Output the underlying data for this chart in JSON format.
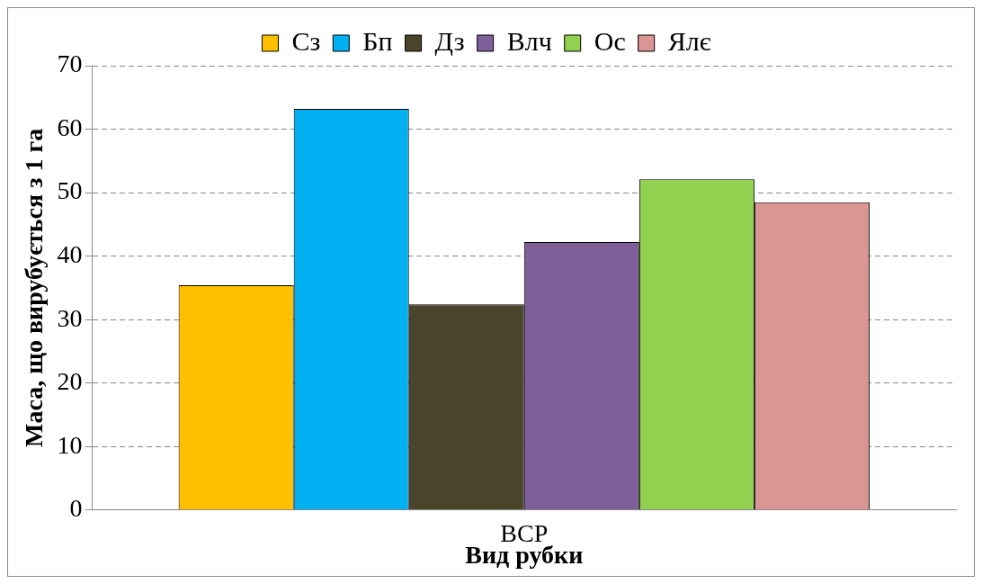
{
  "chart_data": {
    "type": "bar",
    "xlabel": "Вид рубки",
    "ylabel": "Маса, що вирубується з 1 га",
    "categories": [
      "ВСР"
    ],
    "series": [
      {
        "name": "Сз",
        "color": "#ffc000",
        "values": [
          35.4
        ]
      },
      {
        "name": "Бп",
        "color": "#00b0f0",
        "values": [
          63.2
        ]
      },
      {
        "name": "Дз",
        "color": "#4a452a",
        "values": [
          32.4
        ]
      },
      {
        "name": "Влч",
        "color": "#7f5f9a",
        "values": [
          42.2
        ]
      },
      {
        "name": "Ос",
        "color": "#92d050",
        "values": [
          52.1
        ]
      },
      {
        "name": "Ялє",
        "color": "#d99694",
        "values": [
          48.5
        ]
      }
    ],
    "ylim": [
      0,
      70
    ],
    "yticks": [
      0,
      10,
      20,
      30,
      40,
      50,
      60,
      70
    ],
    "grid": "y",
    "legend": "top"
  }
}
